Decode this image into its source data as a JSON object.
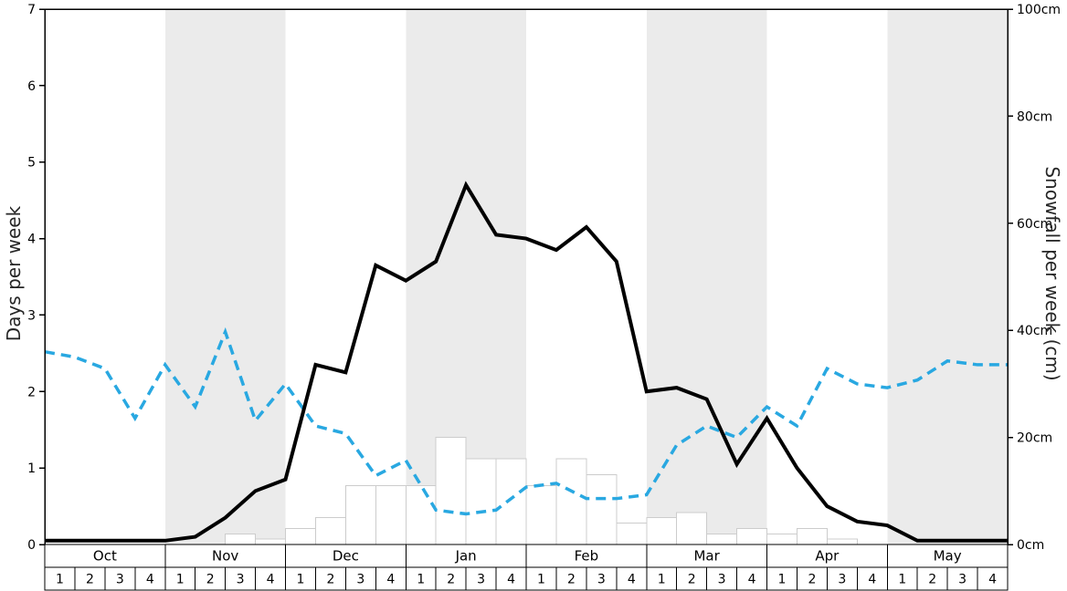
{
  "axes": {
    "left_title": "Days per week",
    "right_title": "Snowfall per week (cm)"
  },
  "chart_data": {
    "type": "line",
    "title": "",
    "legend": "none",
    "background_band_color": "#ebebeb",
    "months": [
      {
        "label": "Oct",
        "weeks": [
          "1",
          "2",
          "3",
          "4"
        ],
        "shaded": false
      },
      {
        "label": "Nov",
        "weeks": [
          "1",
          "2",
          "3",
          "4"
        ],
        "shaded": true
      },
      {
        "label": "Dec",
        "weeks": [
          "1",
          "2",
          "3",
          "4"
        ],
        "shaded": false
      },
      {
        "label": "Jan",
        "weeks": [
          "1",
          "2",
          "3",
          "4"
        ],
        "shaded": true
      },
      {
        "label": "Feb",
        "weeks": [
          "1",
          "2",
          "3",
          "4"
        ],
        "shaded": false
      },
      {
        "label": "Mar",
        "weeks": [
          "1",
          "2",
          "3",
          "4"
        ],
        "shaded": true
      },
      {
        "label": "Apr",
        "weeks": [
          "1",
          "2",
          "3",
          "4"
        ],
        "shaded": false
      },
      {
        "label": "May",
        "weeks": [
          "1",
          "2",
          "3",
          "4"
        ],
        "shaded": true
      }
    ],
    "left_axis": {
      "label": "Days per week",
      "min": 0,
      "max": 7,
      "ticks": [
        0,
        1,
        2,
        3,
        4,
        5,
        6,
        7
      ]
    },
    "right_axis": {
      "label": "Snowfall per week (cm)",
      "min": 0,
      "max": 100,
      "ticks": [
        {
          "value": 0,
          "label": "0cm"
        },
        {
          "value": 20,
          "label": "20cm"
        },
        {
          "value": 40,
          "label": "40cm"
        },
        {
          "value": 60,
          "label": "60cm"
        },
        {
          "value": 80,
          "label": "80cm"
        },
        {
          "value": 100,
          "label": "100cm"
        }
      ]
    },
    "series": [
      {
        "name": "blue-dashed-line-days",
        "axis": "left",
        "style": "dashed",
        "color": "#29a8e1",
        "width": 3.5,
        "values": [
          2.52,
          2.45,
          2.3,
          1.65,
          2.35,
          1.8,
          2.78,
          1.62,
          2.1,
          1.55,
          1.45,
          0.9,
          1.1,
          0.45,
          0.4,
          0.45,
          0.75,
          0.8,
          0.6,
          0.6,
          0.65,
          1.3,
          1.55,
          1.4,
          1.8,
          1.55,
          2.3,
          2.1,
          2.05,
          2.15,
          2.4,
          2.35,
          2.35
        ]
      },
      {
        "name": "black-solid-line-days",
        "axis": "left",
        "style": "solid",
        "color": "#000000",
        "width": 4,
        "values": [
          0.05,
          0.05,
          0.05,
          0.05,
          0.05,
          0.1,
          0.35,
          0.7,
          0.85,
          2.35,
          2.25,
          3.65,
          3.45,
          3.7,
          4.7,
          4.05,
          4.0,
          3.85,
          4.15,
          3.7,
          2.0,
          2.05,
          1.9,
          1.05,
          1.65,
          1.0,
          0.5,
          0.3,
          0.25,
          0.05,
          0.05,
          0.05,
          0.05
        ]
      }
    ],
    "bars": {
      "name": "snowfall-per-week-cm",
      "axis": "right",
      "fill": "#ffffff",
      "stroke": "#cccccc",
      "values_cm": [
        0,
        0,
        0,
        0,
        0,
        0,
        2,
        1,
        3,
        5,
        11,
        11,
        11,
        20,
        16,
        16,
        11,
        16,
        13,
        4,
        5,
        6,
        2,
        3,
        2,
        3,
        1,
        0,
        0,
        0,
        0,
        0
      ]
    }
  }
}
